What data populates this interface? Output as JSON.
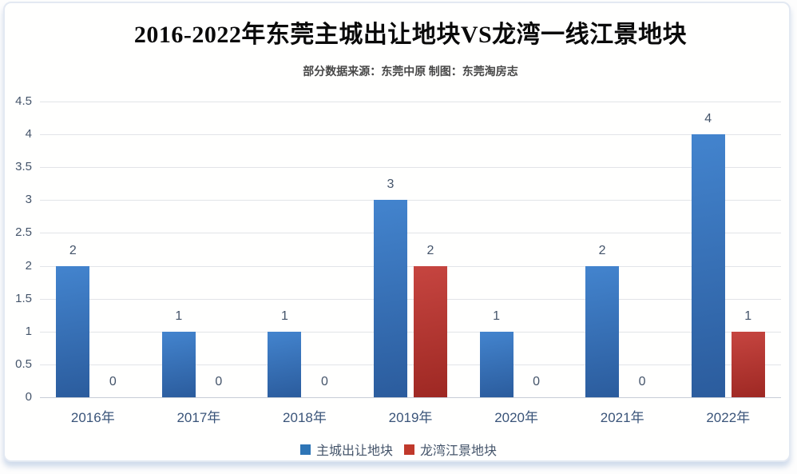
{
  "page": {
    "background": "#fdfdfd",
    "card_background": "#fffffe",
    "card_border_color": "#e3e9f2"
  },
  "chart_data": {
    "type": "bar",
    "title": "2016-2022年东莞主城出让地块VS龙湾一线江景地块",
    "subtitle": "部分数据来源：东莞中原 制图：东莞淘房志",
    "categories": [
      "2016年",
      "2017年",
      "2018年",
      "2019年",
      "2020年",
      "2021年",
      "2022年"
    ],
    "series": [
      {
        "name": "主城出让地块",
        "color": "#2e75b6",
        "gradient_top": "#4384ce",
        "gradient_bottom": "#2b5c9d",
        "values": [
          2,
          1,
          1,
          3,
          1,
          2,
          4
        ]
      },
      {
        "name": "龙湾江景地块",
        "color": "#c0392b",
        "gradient_top": "#c64540",
        "gradient_bottom": "#9e2823",
        "values": [
          0,
          0,
          0,
          2,
          0,
          0,
          1
        ]
      }
    ],
    "ylim": [
      0,
      4.5
    ],
    "ytick_step": 0.5,
    "ytick_labels": [
      "4.5",
      "4",
      "3.5",
      "3",
      "2.5",
      "2",
      "1.5",
      "1",
      "0.5",
      "0"
    ],
    "grid": true,
    "gridline_color": "#e2e4e8",
    "baseline_color": "#c7cdd6",
    "value_label_color": "#44546a",
    "ytick_label_color": "#44546a",
    "xtick_label_color": "#3a5479",
    "legend_position": "bottom"
  }
}
